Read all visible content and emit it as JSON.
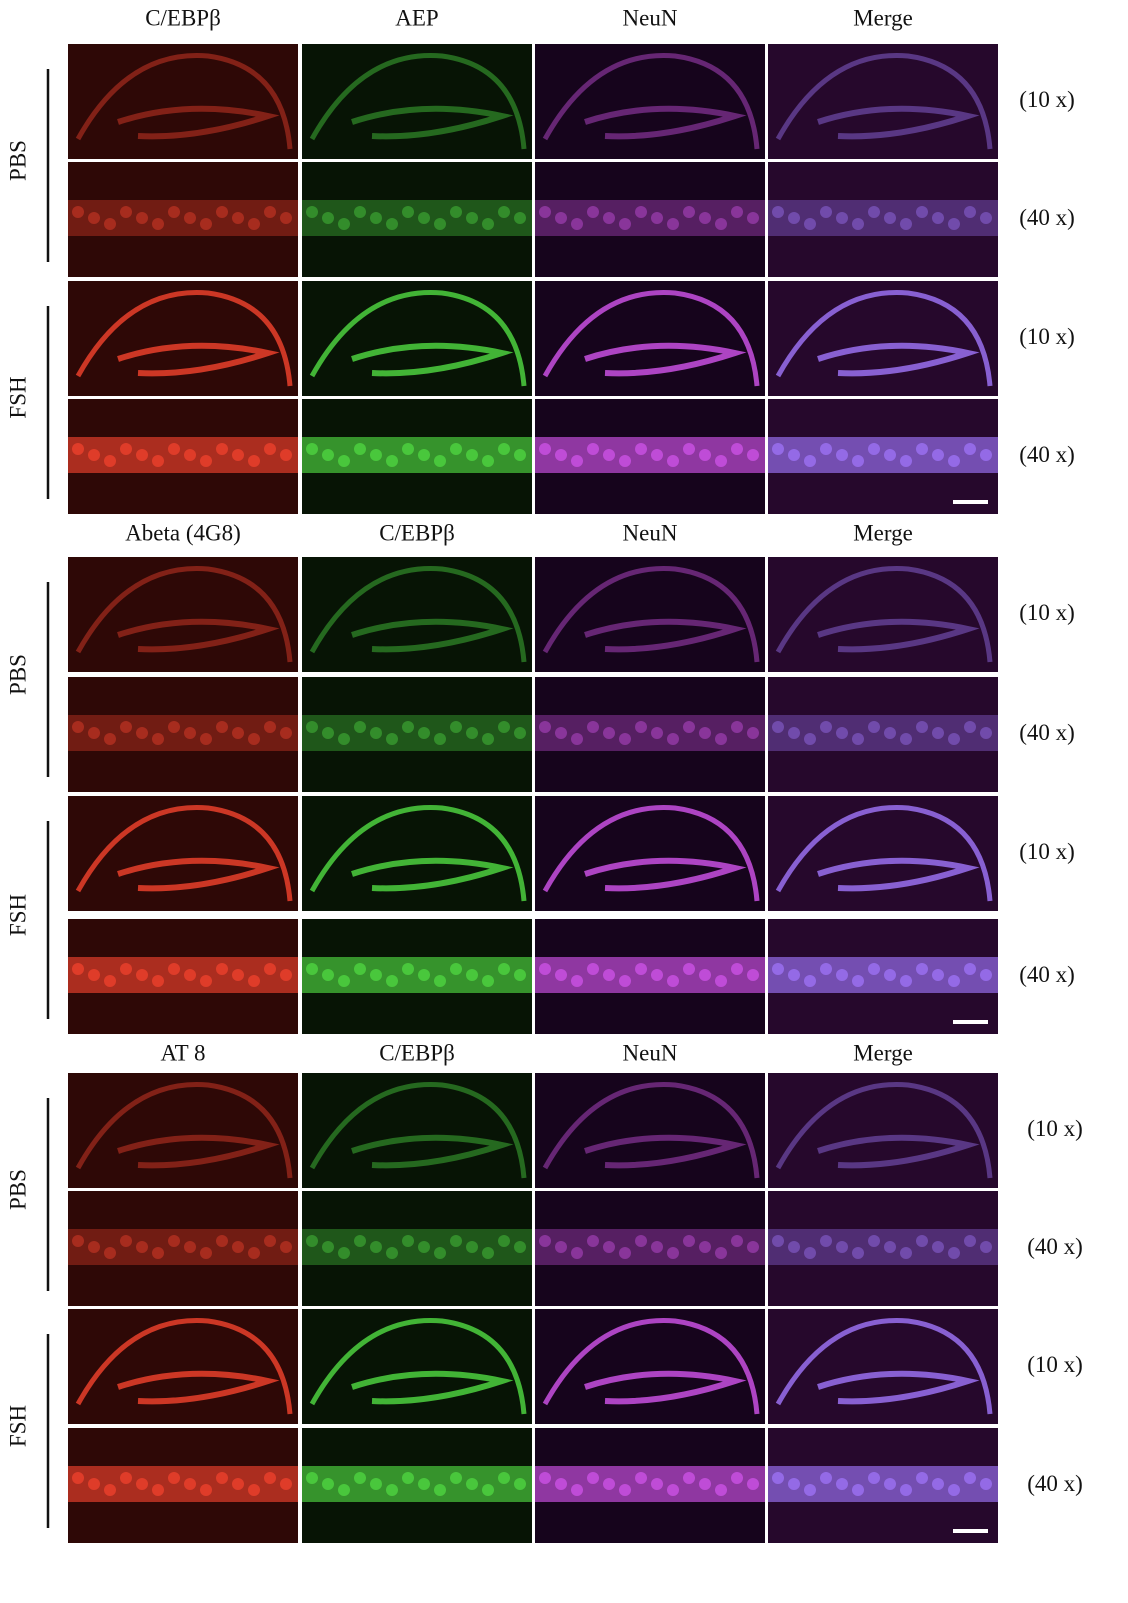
{
  "panels": [
    {
      "headers": [
        "C/EBPβ",
        "AEP",
        "NeuN",
        "Merge"
      ],
      "groups": [
        {
          "label": "PBS",
          "rows": [
            "(10 x)",
            "(40 x)"
          ]
        },
        {
          "label": "FSH",
          "rows": [
            "(10 x)",
            "(40 x)"
          ]
        }
      ]
    },
    {
      "headers": [
        "Abeta (4G8)",
        "C/EBPβ",
        "NeuN",
        "Merge"
      ],
      "groups": [
        {
          "label": "PBS",
          "rows": [
            "(10 x)",
            "(40 x)"
          ]
        },
        {
          "label": "FSH",
          "rows": [
            "(10 x)",
            "(40 x)"
          ]
        }
      ]
    },
    {
      "headers": [
        "AT 8",
        "C/EBPβ",
        "NeuN",
        "Merge"
      ],
      "groups": [
        {
          "label": "PBS",
          "rows": [
            "(10 x)",
            "(40 x)"
          ]
        },
        {
          "label": "FSH",
          "rows": [
            "(10 x)",
            "(40 x)"
          ]
        }
      ]
    }
  ]
}
